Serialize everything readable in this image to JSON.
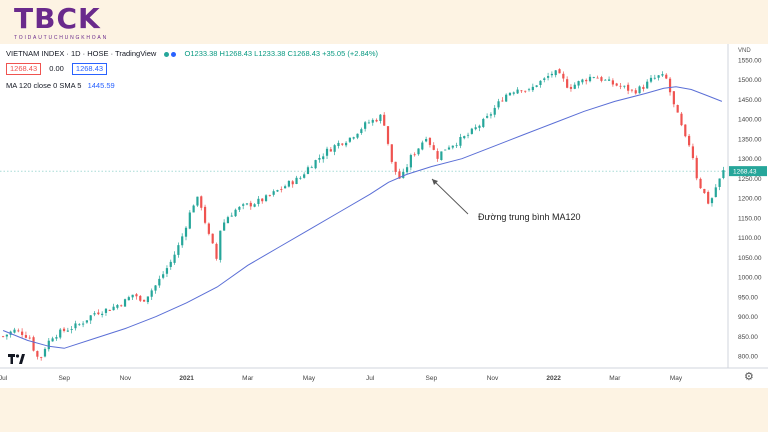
{
  "logo": {
    "main": "TBCK",
    "sub": "TOIDAUTUCHUNGKHOAN"
  },
  "header": {
    "title": "VIETNAM INDEX · 1D · HOSE · TradingView",
    "ohlc": "O1233.38 H1268.43 L1233.38 C1268.43 +35.05 (+2.84%)",
    "price_box_left": "1268.43",
    "spread": "0.00",
    "price_box_right": "1268.43",
    "ma_label": "MA 120 close 0 SMA 5",
    "ma_value": "1445.59"
  },
  "colors": {
    "up": "#26a69a",
    "down": "#ef5350",
    "ma": "#5b6fd6",
    "axis_tag": "#26a69a",
    "logo": "#6a2a8c"
  },
  "icons": {
    "tv_logo": "tradingview-logo-icon",
    "settings": "gear-icon"
  },
  "annotation": {
    "text": "Đường trung bình MA120"
  },
  "chart_data": {
    "type": "candlestick",
    "title": "VIETNAM INDEX · 1D · HOSE",
    "ylim": [
      770,
      1570
    ],
    "y_axis_currency": "VND",
    "y_ticks": [
      800,
      850,
      900,
      950,
      1000,
      1050,
      1100,
      1150,
      1200,
      1250,
      1300,
      1350,
      1400,
      1450,
      1500,
      1550
    ],
    "last_price": 1268.43,
    "x_ticks": [
      {
        "label": "Jul",
        "t": 0
      },
      {
        "label": "Sep",
        "t": 2
      },
      {
        "label": "Nov",
        "t": 4
      },
      {
        "label": "2021",
        "t": 6
      },
      {
        "label": "Mar",
        "t": 8
      },
      {
        "label": "May",
        "t": 10
      },
      {
        "label": "Jul",
        "t": 12
      },
      {
        "label": "Sep",
        "t": 14
      },
      {
        "label": "Nov",
        "t": 16
      },
      {
        "label": "2022",
        "t": 18
      },
      {
        "label": "Mar",
        "t": 20
      },
      {
        "label": "May",
        "t": 22
      }
    ],
    "t_range": [
      -0.1,
      23.7
    ],
    "price_path": [
      [
        0.0,
        850
      ],
      [
        0.35,
        865
      ],
      [
        0.6,
        860
      ],
      [
        0.9,
        845
      ],
      [
        1.05,
        805
      ],
      [
        1.2,
        790
      ],
      [
        1.35,
        820
      ],
      [
        1.6,
        850
      ],
      [
        2.0,
        865
      ],
      [
        2.5,
        880
      ],
      [
        3.0,
        910
      ],
      [
        3.5,
        920
      ],
      [
        4.0,
        940
      ],
      [
        4.3,
        960
      ],
      [
        4.5,
        935
      ],
      [
        5.0,
        980
      ],
      [
        5.5,
        1040
      ],
      [
        5.8,
        1090
      ],
      [
        6.1,
        1160
      ],
      [
        6.3,
        1200
      ],
      [
        6.45,
        1190
      ],
      [
        6.7,
        1110
      ],
      [
        6.9,
        1070
      ],
      [
        7.0,
        1040
      ],
      [
        7.1,
        1120
      ],
      [
        7.3,
        1150
      ],
      [
        7.6,
        1170
      ],
      [
        7.9,
        1180
      ],
      [
        8.3,
        1190
      ],
      [
        8.6,
        1200
      ],
      [
        9.0,
        1220
      ],
      [
        9.4,
        1240
      ],
      [
        9.7,
        1250
      ],
      [
        10.0,
        1280
      ],
      [
        10.3,
        1300
      ],
      [
        10.6,
        1320
      ],
      [
        11.0,
        1340
      ],
      [
        11.3,
        1350
      ],
      [
        11.6,
        1370
      ],
      [
        11.9,
        1390
      ],
      [
        12.2,
        1400
      ],
      [
        12.4,
        1410
      ],
      [
        12.55,
        1360
      ],
      [
        12.65,
        1300
      ],
      [
        12.75,
        1280
      ],
      [
        12.95,
        1250
      ],
      [
        13.1,
        1260
      ],
      [
        13.3,
        1300
      ],
      [
        13.6,
        1330
      ],
      [
        13.85,
        1360
      ],
      [
        14.0,
        1330
      ],
      [
        14.2,
        1305
      ],
      [
        14.5,
        1330
      ],
      [
        14.8,
        1340
      ],
      [
        15.2,
        1360
      ],
      [
        15.5,
        1380
      ],
      [
        15.8,
        1400
      ],
      [
        16.1,
        1430
      ],
      [
        16.4,
        1460
      ],
      [
        16.6,
        1470
      ],
      [
        16.9,
        1480
      ],
      [
        17.2,
        1470
      ],
      [
        17.45,
        1490
      ],
      [
        17.7,
        1500
      ],
      [
        18.0,
        1520
      ],
      [
        18.25,
        1505
      ],
      [
        18.5,
        1480
      ],
      [
        18.75,
        1490
      ],
      [
        19.0,
        1500
      ],
      [
        19.3,
        1510
      ],
      [
        19.6,
        1500
      ],
      [
        19.9,
        1490
      ],
      [
        20.3,
        1480
      ],
      [
        20.6,
        1470
      ],
      [
        20.9,
        1480
      ],
      [
        21.2,
        1500
      ],
      [
        21.5,
        1510
      ],
      [
        21.7,
        1500
      ],
      [
        21.9,
        1440
      ],
      [
        22.1,
        1400
      ],
      [
        22.3,
        1350
      ],
      [
        22.5,
        1330
      ],
      [
        22.65,
        1260
      ],
      [
        22.8,
        1230
      ],
      [
        23.0,
        1200
      ],
      [
        23.1,
        1180
      ],
      [
        23.25,
        1220
      ],
      [
        23.45,
        1250
      ],
      [
        23.55,
        1268
      ]
    ],
    "ma120": [
      [
        0.0,
        865
      ],
      [
        0.8,
        840
      ],
      [
        1.5,
        825
      ],
      [
        2.0,
        820
      ],
      [
        3.0,
        845
      ],
      [
        4.0,
        870
      ],
      [
        5.0,
        900
      ],
      [
        6.0,
        935
      ],
      [
        7.0,
        975
      ],
      [
        8.0,
        1030
      ],
      [
        9.0,
        1075
      ],
      [
        10.0,
        1120
      ],
      [
        11.0,
        1165
      ],
      [
        12.0,
        1210
      ],
      [
        12.6,
        1240
      ],
      [
        13.2,
        1260
      ],
      [
        14.0,
        1280
      ],
      [
        15.0,
        1300
      ],
      [
        16.0,
        1330
      ],
      [
        17.0,
        1360
      ],
      [
        18.0,
        1390
      ],
      [
        19.0,
        1420
      ],
      [
        20.0,
        1445
      ],
      [
        21.0,
        1465
      ],
      [
        21.6,
        1478
      ],
      [
        22.0,
        1482
      ],
      [
        22.5,
        1475
      ],
      [
        23.0,
        1460
      ],
      [
        23.5,
        1445
      ]
    ]
  }
}
